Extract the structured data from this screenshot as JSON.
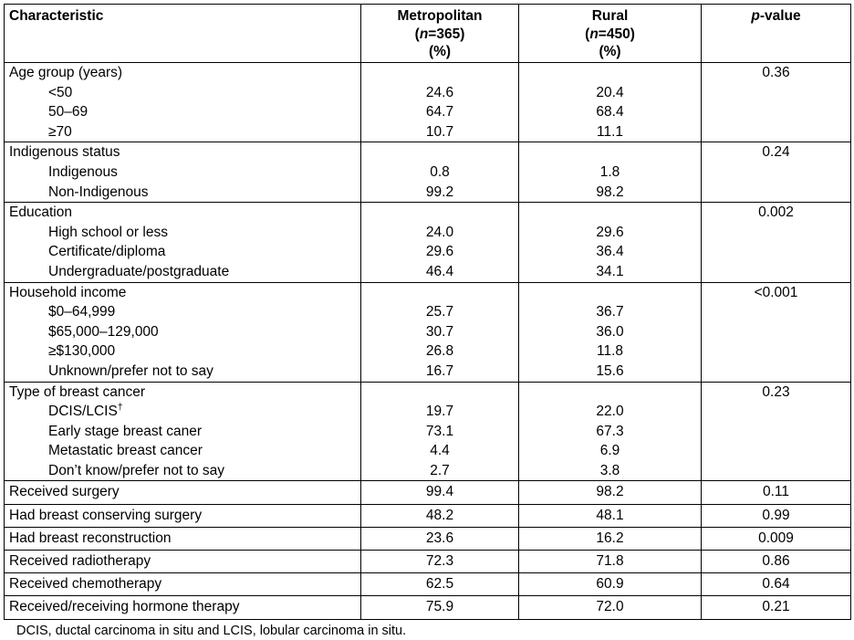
{
  "page": {
    "background_color": "#ffffff",
    "text_color": "#000000",
    "border_color": "#000000"
  },
  "table": {
    "columns": [
      {
        "key": "characteristic",
        "title": "Characteristic"
      },
      {
        "key": "metropolitan",
        "title": "Metropolitan",
        "n_line": "(n=365)",
        "unit_line": "(%)"
      },
      {
        "key": "rural",
        "title": "Rural",
        "n_line": "(n=450)",
        "unit_line": "(%)"
      },
      {
        "key": "p-value",
        "title": "p-value"
      }
    ],
    "sections": [
      {
        "type": "group",
        "label": "Age group (years)",
        "p_value": "0.36",
        "rows": [
          {
            "label": "<50",
            "metropolitan": "24.6",
            "rural": "20.4"
          },
          {
            "label": "50–69",
            "metropolitan": "64.7",
            "rural": "68.4"
          },
          {
            "label": "≥70",
            "metropolitan": "10.7",
            "rural": "11.1"
          }
        ]
      },
      {
        "type": "group",
        "label": "Indigenous status",
        "p_value": "0.24",
        "rows": [
          {
            "label": "Indigenous",
            "metropolitan": "0.8",
            "rural": "1.8"
          },
          {
            "label": "Non-Indigenous",
            "metropolitan": "99.2",
            "rural": "98.2"
          }
        ]
      },
      {
        "type": "group",
        "label": "Education",
        "p_value": "0.002",
        "rows": [
          {
            "label": "High school or less",
            "metropolitan": "24.0",
            "rural": "29.6"
          },
          {
            "label": "Certificate/diploma",
            "metropolitan": "29.6",
            "rural": "36.4"
          },
          {
            "label": "Undergraduate/postgraduate",
            "metropolitan": "46.4",
            "rural": "34.1"
          }
        ]
      },
      {
        "type": "group",
        "label": "Household income",
        "p_value": "<0.001",
        "rows": [
          {
            "label": "$0–64,999",
            "metropolitan": "25.7",
            "rural": "36.7"
          },
          {
            "label": "$65,000–129,000",
            "metropolitan": "30.7",
            "rural": "36.0"
          },
          {
            "label": "≥$130,000",
            "metropolitan": "26.8",
            "rural": "11.8"
          },
          {
            "label": "Unknown/prefer not to say",
            "metropolitan": "16.7",
            "rural": "15.6"
          }
        ]
      },
      {
        "type": "group",
        "label": "Type of breast cancer",
        "p_value": "0.23",
        "rows": [
          {
            "label": "DCIS/LCIS",
            "sup": "†",
            "metropolitan": "19.7",
            "rural": "22.0"
          },
          {
            "label": "Early stage breast caner",
            "metropolitan": "73.1",
            "rural": "67.3"
          },
          {
            "label": "Metastatic breast cancer",
            "metropolitan": "4.4",
            "rural": "6.9"
          },
          {
            "label": "Don’t know/prefer not to say",
            "metropolitan": "2.7",
            "rural": "3.8"
          }
        ]
      },
      {
        "type": "single",
        "label": "Received surgery",
        "metropolitan": "99.4",
        "rural": "98.2",
        "p_value": "0.11"
      },
      {
        "type": "single",
        "label": "Had breast conserving surgery",
        "metropolitan": "48.2",
        "rural": "48.1",
        "p_value": "0.99"
      },
      {
        "type": "single",
        "label": "Had breast reconstruction",
        "metropolitan": "23.6",
        "rural": "16.2",
        "p_value": "0.009"
      },
      {
        "type": "single",
        "label": "Received radiotherapy",
        "metropolitan": "72.3",
        "rural": "71.8",
        "p_value": "0.86"
      },
      {
        "type": "single",
        "label": "Received chemotherapy",
        "metropolitan": "62.5",
        "rural": "60.9",
        "p_value": "0.64"
      },
      {
        "type": "single",
        "label": "Received/receiving hormone therapy",
        "metropolitan": "75.9",
        "rural": "72.0",
        "p_value": "0.21"
      }
    ],
    "footnote": "DCIS, ductal carcinoma in situ and LCIS, lobular carcinoma in situ."
  }
}
